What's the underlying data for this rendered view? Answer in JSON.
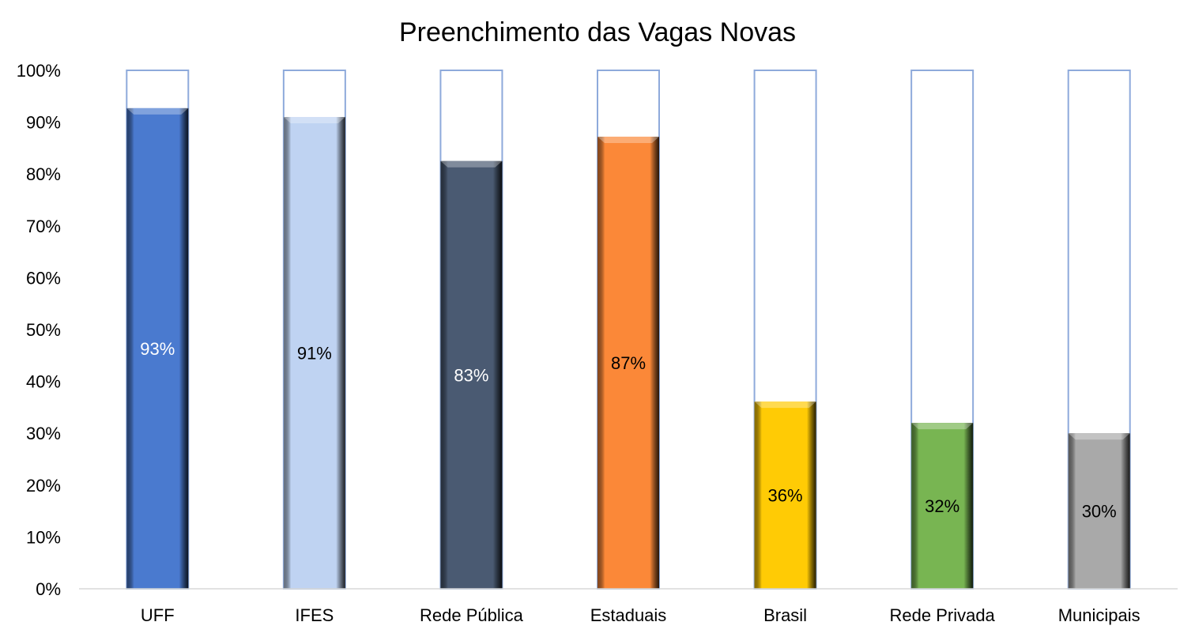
{
  "chart_data": {
    "type": "bar",
    "title": "Preenchimento das Vagas Novas",
    "xlabel": "",
    "ylabel": "",
    "ylim": [
      0,
      100
    ],
    "yticks": [
      "0%",
      "10%",
      "20%",
      "30%",
      "40%",
      "50%",
      "60%",
      "70%",
      "80%",
      "90%",
      "100%"
    ],
    "grid": false,
    "legend": "none",
    "categories": [
      "UFF",
      "IFES",
      "Rede Pública",
      "Estaduais",
      "Brasil",
      "Rede Privada",
      "Municipais"
    ],
    "values": [
      92.7,
      91,
      82.5,
      87.2,
      36.1,
      32,
      30
    ],
    "data_labels": [
      "93%",
      "91%",
      "83%",
      "87%",
      "36%",
      "32%",
      "30%"
    ],
    "capacity": 100,
    "colors": [
      "#4a7acf",
      "#bfd3f2",
      "#4a5a72",
      "#fb8838",
      "#ffcb05",
      "#78b552",
      "#a9a9a9"
    ],
    "label_colors": [
      "#ffffff",
      "#000000",
      "#ffffff",
      "#000000",
      "#000000",
      "#000000",
      "#000000"
    ],
    "outline_color": "#8eaadb"
  }
}
